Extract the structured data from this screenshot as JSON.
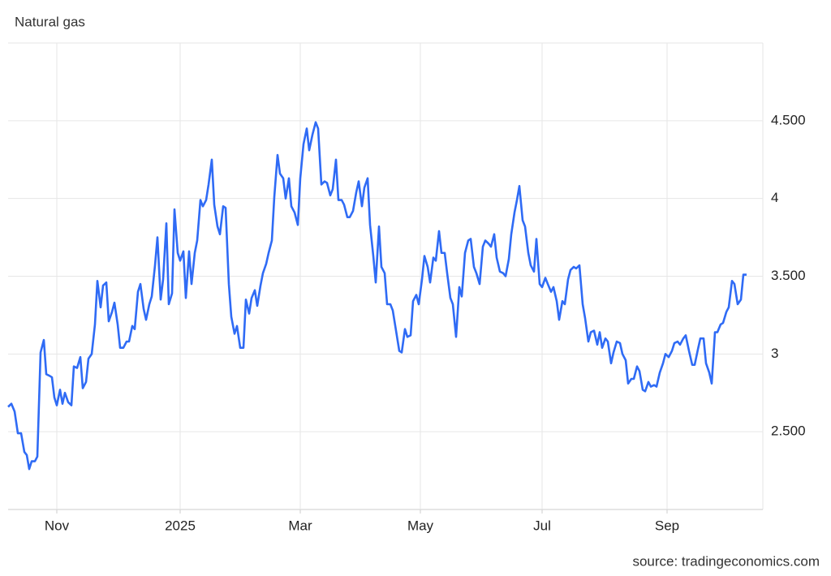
{
  "chart_data": {
    "type": "line",
    "title": "Natural gas",
    "source": "source: tradingeconomics.com",
    "xlim": [
      0,
      372
    ],
    "ylim": [
      2,
      5
    ],
    "xticks": [
      {
        "value": 24,
        "label": "Nov"
      },
      {
        "value": 84.8,
        "label": "2025"
      },
      {
        "value": 144,
        "label": "Mar"
      },
      {
        "value": 203.2,
        "label": "May"
      },
      {
        "value": 263.2,
        "label": "Jul"
      },
      {
        "value": 324.8,
        "label": "Sep"
      }
    ],
    "yticks": [
      {
        "value": 2.5,
        "label": "2.500"
      },
      3,
      {
        "value": 3.5,
        "label": "3.500"
      },
      4,
      {
        "value": 4.5,
        "label": "4.500"
      }
    ],
    "grid": true,
    "series": [
      {
        "color": "#2f6bf5",
        "x": [
          0,
          1.6,
          3.2,
          4.8,
          6.4,
          8,
          9.2,
          10.4,
          11.6,
          13.2,
          14.4,
          16,
          17.6,
          18.8,
          20.4,
          21.6,
          22.8,
          24,
          25.6,
          26.8,
          28,
          29.6,
          31.2,
          32.4,
          34,
          35.6,
          36.8,
          38.4,
          39.6,
          41.2,
          42.8,
          44,
          45.6,
          46.8,
          48.4,
          49.6,
          51.2,
          52.4,
          54,
          55.2,
          56.8,
          58.4,
          59.6,
          61.2,
          62.4,
          64,
          65.2,
          66.8,
          68,
          69.6,
          70.8,
          72.4,
          73.6,
          75.2,
          76.4,
          78,
          79.2,
          80.8,
          82,
          83.6,
          84.8,
          86.4,
          87.6,
          89.2,
          90.4,
          92,
          93.2,
          94.8,
          96,
          97.6,
          98.8,
          100.4,
          101.6,
          103.2,
          104.4,
          106,
          107.2,
          108.8,
          110,
          111.6,
          112.8,
          114.4,
          116,
          117.2,
          118.8,
          120,
          121.6,
          122.8,
          124.4,
          125.6,
          127.2,
          128.4,
          130,
          131.2,
          132.8,
          134,
          135.6,
          136.8,
          138.4,
          139.6,
          141.2,
          142.8,
          144,
          145.6,
          147.2,
          148.4,
          150,
          151.6,
          152.8,
          154.4,
          156,
          157.2,
          158.8,
          160,
          161.6,
          162.8,
          164.4,
          165.6,
          167.2,
          168.4,
          170,
          171.6,
          172.8,
          174.4,
          175.6,
          177.2,
          178.4,
          180,
          181.2,
          182.8,
          184,
          185.6,
          186.8,
          188.4,
          189.6,
          191.2,
          192.8,
          194,
          195.6,
          196.8,
          198.4,
          199.6,
          201.2,
          202.4,
          204,
          205.2,
          206.8,
          208,
          209.6,
          210.8,
          212.4,
          213.6,
          215.2,
          216.4,
          218,
          219.2,
          220.8,
          222.4,
          223.6,
          225.2,
          226.8,
          228,
          229.6,
          230.8,
          232.4,
          234,
          235.2,
          236.8,
          238,
          239.6,
          240.8,
          242.4,
          244,
          245.2,
          246.8,
          248,
          249.6,
          250.8,
          252,
          253.6,
          254.8,
          256.4,
          257.6,
          259.2,
          260.4,
          262,
          263.2,
          264.8,
          266,
          267.6,
          268.8,
          270.4,
          271.6,
          273.2,
          274.4,
          276,
          277.2,
          278.8,
          280,
          281.6,
          283.2,
          284.4,
          286,
          287.2,
          288.8,
          290.4,
          291.6,
          292.8,
          294.4,
          295.6,
          297.2,
          298.4,
          300,
          301.6,
          302.8,
          304.4,
          305.6,
          307.2,
          308.4,
          310,
          311.2,
          312.8,
          314,
          315.6,
          316.8,
          318.4,
          319.6,
          321.2,
          322.8,
          324,
          325.6,
          327.2,
          328.4,
          330,
          331.2,
          332.8,
          334,
          335.6,
          337.2,
          338.4,
          340,
          341.2,
          342.8,
          344,
          345.6,
          346.8,
          348.4,
          349.6,
          351.2,
          352.4,
          354,
          355.2,
          356.8,
          358,
          359.6,
          361.2,
          362.4,
          364
        ],
        "values": [
          2.66,
          2.68,
          2.63,
          2.49,
          2.49,
          2.37,
          2.35,
          2.26,
          2.31,
          2.31,
          2.34,
          3.01,
          3.09,
          2.87,
          2.86,
          2.85,
          2.72,
          2.67,
          2.77,
          2.68,
          2.75,
          2.69,
          2.67,
          2.92,
          2.91,
          2.98,
          2.78,
          2.82,
          2.97,
          3.0,
          3.19,
          3.47,
          3.3,
          3.44,
          3.46,
          3.21,
          3.27,
          3.33,
          3.19,
          3.04,
          3.04,
          3.08,
          3.08,
          3.18,
          3.16,
          3.4,
          3.45,
          3.29,
          3.22,
          3.32,
          3.37,
          3.57,
          3.75,
          3.35,
          3.48,
          3.84,
          3.32,
          3.39,
          3.93,
          3.65,
          3.6,
          3.66,
          3.36,
          3.66,
          3.45,
          3.65,
          3.73,
          3.99,
          3.95,
          3.99,
          4.09,
          4.25,
          3.96,
          3.82,
          3.77,
          3.95,
          3.94,
          3.45,
          3.24,
          3.13,
          3.18,
          3.04,
          3.04,
          3.35,
          3.26,
          3.36,
          3.41,
          3.31,
          3.44,
          3.52,
          3.58,
          3.65,
          3.73,
          4.01,
          4.28,
          4.16,
          4.13,
          4.0,
          4.13,
          3.95,
          3.91,
          3.83,
          4.13,
          4.35,
          4.45,
          4.31,
          4.41,
          4.49,
          4.45,
          4.09,
          4.11,
          4.1,
          4.02,
          4.06,
          4.25,
          3.99,
          3.99,
          3.96,
          3.88,
          3.88,
          3.92,
          4.04,
          4.11,
          3.95,
          4.07,
          4.13,
          3.83,
          3.63,
          3.46,
          3.82,
          3.56,
          3.52,
          3.32,
          3.32,
          3.28,
          3.15,
          3.02,
          3.01,
          3.16,
          3.11,
          3.12,
          3.34,
          3.38,
          3.32,
          3.48,
          3.63,
          3.56,
          3.46,
          3.62,
          3.6,
          3.79,
          3.65,
          3.65,
          3.52,
          3.36,
          3.32,
          3.11,
          3.43,
          3.37,
          3.65,
          3.73,
          3.74,
          3.56,
          3.52,
          3.45,
          3.69,
          3.73,
          3.71,
          3.69,
          3.77,
          3.62,
          3.53,
          3.52,
          3.5,
          3.61,
          3.77,
          3.91,
          3.99,
          4.08,
          3.86,
          3.82,
          3.65,
          3.57,
          3.53,
          3.74,
          3.45,
          3.43,
          3.49,
          3.45,
          3.4,
          3.43,
          3.34,
          3.22,
          3.34,
          3.32,
          3.48,
          3.54,
          3.56,
          3.55,
          3.57,
          3.32,
          3.23,
          3.08,
          3.14,
          3.15,
          3.06,
          3.14,
          3.04,
          3.1,
          3.08,
          2.94,
          3.01,
          3.08,
          3.07,
          3.0,
          2.96,
          2.81,
          2.84,
          2.84,
          2.92,
          2.89,
          2.77,
          2.76,
          2.82,
          2.79,
          2.8,
          2.79,
          2.88,
          2.94,
          3.0,
          2.98,
          3.02,
          3.07,
          3.08,
          3.06,
          3.1,
          3.12,
          3.02,
          2.93,
          2.93,
          3.03,
          3.1,
          3.1,
          2.94,
          2.88,
          2.81,
          3.14,
          3.14,
          3.19,
          3.2,
          3.27,
          3.3,
          3.47,
          3.45,
          3.32,
          3.35,
          3.51,
          3.51
        ]
      }
    ]
  }
}
